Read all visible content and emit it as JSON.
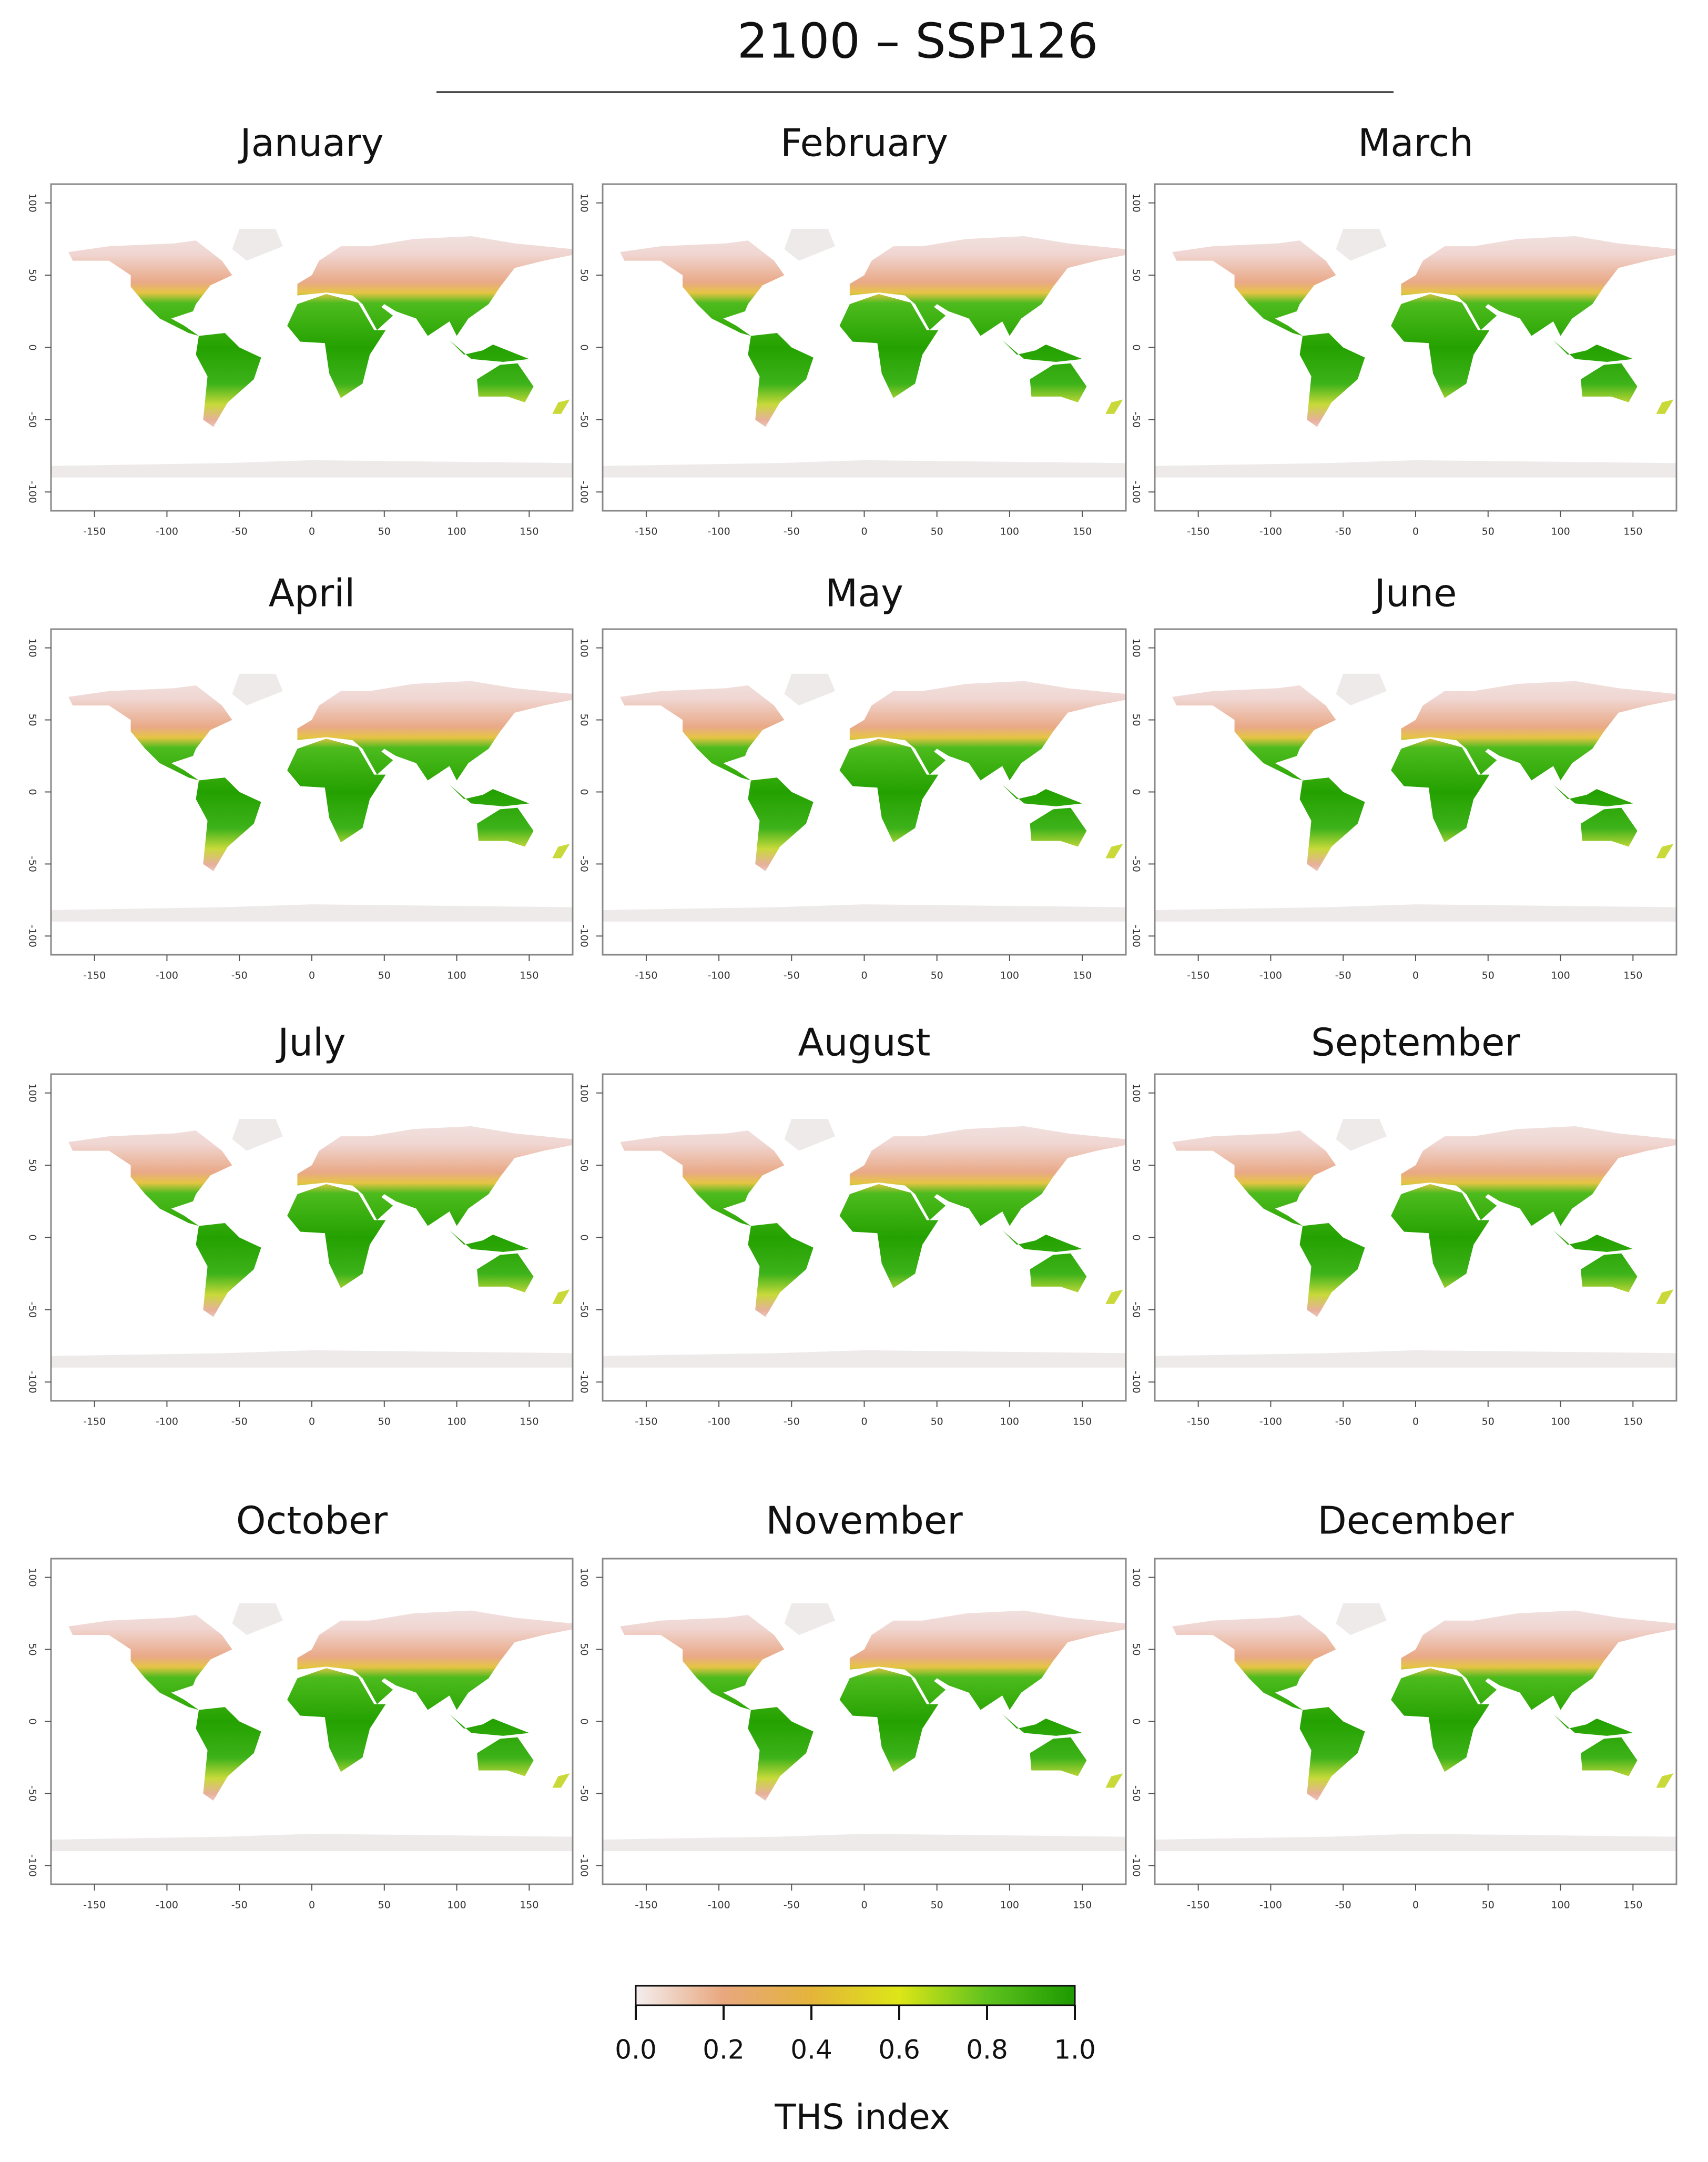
{
  "title": "2100 – SSP126",
  "panels": [
    {
      "title": "January"
    },
    {
      "title": "February"
    },
    {
      "title": "March"
    },
    {
      "title": "April"
    },
    {
      "title": "May"
    },
    {
      "title": "June"
    },
    {
      "title": "July"
    },
    {
      "title": "August"
    },
    {
      "title": "September"
    },
    {
      "title": "October"
    },
    {
      "title": "November"
    },
    {
      "title": "December"
    }
  ],
  "x_axis": {
    "lim": [
      -180,
      180
    ],
    "ticks": [
      -150,
      -100,
      -50,
      0,
      50,
      100,
      150
    ]
  },
  "y_axis": {
    "lim": [
      -113,
      113
    ],
    "ticks": [
      -100,
      -50,
      0,
      50,
      100
    ]
  },
  "colorbar": {
    "label": "THS index",
    "lim": [
      0,
      1
    ],
    "ticks": [
      {
        "value": 0,
        "label": "0.0"
      },
      {
        "value": 0.2,
        "label": "0.2"
      },
      {
        "value": 0.4,
        "label": "0.4"
      },
      {
        "value": 0.6,
        "label": "0.6"
      },
      {
        "value": 0.8,
        "label": "0.8"
      },
      {
        "value": 1,
        "label": "1.0"
      }
    ],
    "colors": [
      "#f4eeee",
      "#e8a77e",
      "#e4b43a",
      "#dde617",
      "#5fc21e",
      "#1c9a00"
    ]
  }
}
